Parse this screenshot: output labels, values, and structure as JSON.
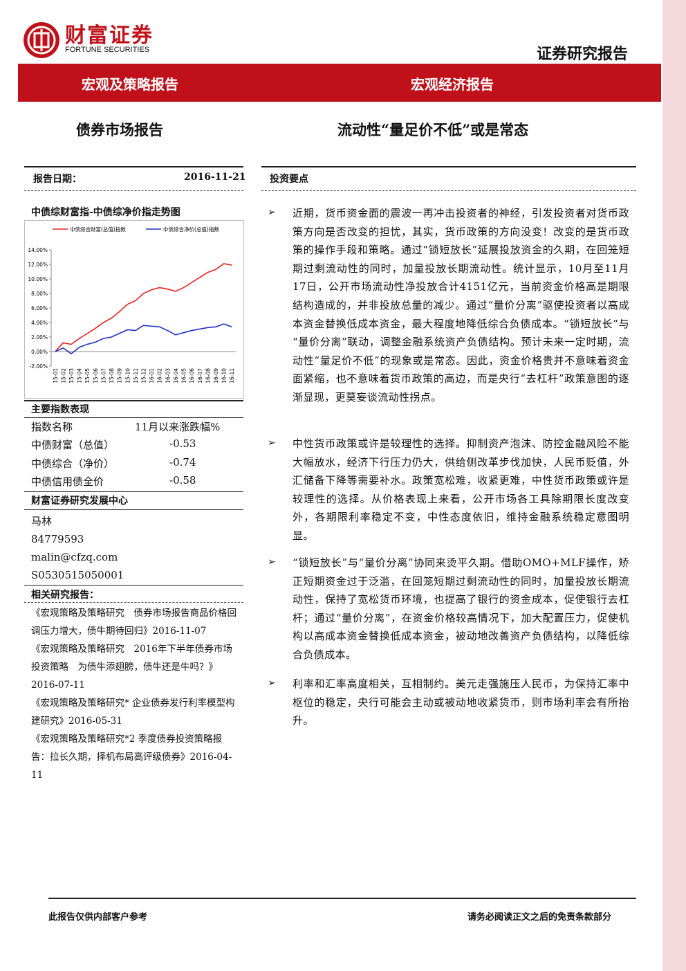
{
  "header": {
    "brand": "财富证券",
    "brand_en": "FORTUNE SECURITIES",
    "doc_type": "证券研究报告"
  },
  "banner": {
    "left": "宏观及策略报告",
    "right": "宏观经济报告"
  },
  "titles": {
    "left": "债券市场报告",
    "right": "流动性“量足价不低”或是常态"
  },
  "report_date": {
    "label": "报告日期：",
    "value": "2016-11-21"
  },
  "chart_title": "中债综财富指-中债综净价指走势图",
  "chart_data": {
    "type": "line",
    "categories": [
      "15-01",
      "15-02",
      "15-03",
      "15-04",
      "15-05",
      "15-06",
      "15-07",
      "15-08",
      "15-09",
      "15-10",
      "15-11",
      "15-12",
      "16-01",
      "16-02",
      "16-03",
      "16-04",
      "16-05",
      "16-06",
      "16-07",
      "16-08",
      "16-09",
      "16-10",
      "16-11"
    ],
    "series": [
      {
        "name": "中债综合财富(总值)指数",
        "color": "#e8201c",
        "values": [
          0,
          1.2,
          1.0,
          1.8,
          2.5,
          3.2,
          4.0,
          4.6,
          5.5,
          6.5,
          7.0,
          8.0,
          8.5,
          8.8,
          8.6,
          8.3,
          8.8,
          9.5,
          10.2,
          10.9,
          11.3,
          12.1,
          11.9
        ]
      },
      {
        "name": "中债综合净价(总值)指数",
        "color": "#1f2fc8",
        "values": [
          0,
          0.5,
          -0.3,
          0.6,
          1.0,
          1.3,
          1.8,
          2.0,
          2.5,
          3.0,
          2.9,
          3.6,
          3.5,
          3.4,
          2.9,
          2.3,
          2.6,
          2.9,
          3.1,
          3.3,
          3.4,
          3.8,
          3.4
        ]
      }
    ],
    "ylim": [
      -2,
      14
    ],
    "yticks": [
      {
        "value": -2,
        "label": "-2.00%"
      },
      {
        "value": 0,
        "label": "0.00%"
      },
      {
        "value": 2,
        "label": "2.00%"
      },
      {
        "value": 4,
        "label": "4.00%"
      },
      {
        "value": 6,
        "label": "6.00%"
      },
      {
        "value": 8,
        "label": "8.00%"
      },
      {
        "value": 10,
        "label": "10.00%"
      },
      {
        "value": 12,
        "label": "12.00%"
      },
      {
        "value": 14,
        "label": "14.00%"
      }
    ],
    "legend": "top"
  },
  "index_table": {
    "title": "主要指数表现",
    "header": [
      "指数名称",
      "11月以来涨跌幅%"
    ],
    "rows": [
      [
        "中债财富（总值）",
        -0.53
      ],
      [
        "中债综合（净价）",
        -0.74
      ],
      [
        "中债信用债全价",
        -0.58
      ]
    ]
  },
  "analyst": {
    "center": "财富证券研究发展中心",
    "name": "马林",
    "phone": "84779593",
    "email": "malin@cfzq.com",
    "license": "S0530515050001"
  },
  "related": {
    "title": "相关研究报告：",
    "items": [
      "《宏观策略及策略研究　债券市场报告商品价格回调压力增大，债牛期待回归》2016-11-07",
      "《宏观策略及策略研究　2016年下半年债券市场投资策略　为债牛添翅膀，债牛还是牛吗？》2016-07-11",
      "《宏观策略及策略研究* 企业债券发行利率模型构建研究》2016-05-31",
      "《宏观策略及策略研究*2 季度债券投资策略报告：拉长久期，择机布局高评级债券》2016-04-11"
    ]
  },
  "summary": {
    "title": "投资要点",
    "paragraphs": [
      "近期，货币资金面的震波一再冲击投资者的神经，引发投资者对货币政策方向是否改变的担忧，其实，货币政策的方向没变！改变的是货币政策的操作手段和策略。通过“锁短放长”延展投放资金的久期，在回笼短期过剩流动性的同时，加量投放长期流动性。统计显示，10月至11月17日，公开市场流动性净投放合计4151亿元，当前资金价格高是期限结构造成的，并非投放总量的减少。通过“量价分离”驱使投资者以高成本资金替换低成本资金，最大程度地降低综合负债成本。“锁短放长”与“量价分离”联动，调整金融系统资产负债结构。预计未来一定时期，流动性“量足价不低”的现象或是常态。因此，资金价格贵并不意味着资金面紧缩，也不意味着货币政策的高边，而是央行“去杠杆”政策意图的逐渐显现，更莫妄谈流动性拐点。",
      "中性货币政策或许是较理性的选择。抑制资产泡沫、防控金融风险不能大幅放水，经济下行压力仍大，供给侧改革步伐加快，人民币贬值，外汇储备下降等需要补水。政策宽松难，收紧更难，中性货币政策或许是较理性的选择。从价格表现上来看，公开市场各工具除期限长度改变外，各期限利率稳定不变，中性态度依旧，维持金融系统稳定意图明显。",
      "“锁短放长”与“量价分离”协同来烫平久期。借助OMO+MLF操作，矫正短期资金过于泛滥，在回笼短期过剩流动性的同时，加量投放长期流动性，保持了宽松货币环境，也提高了银行的资金成本，促使银行去杠杆；通过“量价分离”，在资金价格较高情况下，加大配置压力，促使机构以高成本资金替换低成本资金，被动地改善资产负债结构，以降低综合负债成本。",
      "利率和汇率高度相关，互相制约。美元走强施压人民币，为保持汇率中枢位的稳定，央行可能会主动或被动地收紧货币，则市场利率会有所抬升。"
    ]
  },
  "footer": {
    "left": "此报告仅供内部客户参考",
    "right": "请务必阅读正文之后的免责条款部分"
  }
}
